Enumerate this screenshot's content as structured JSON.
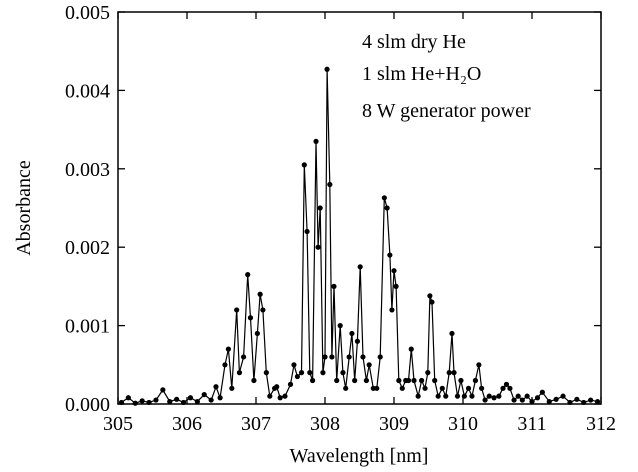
{
  "chart_data": {
    "type": "line",
    "xlabel": "Wavelength [nm]",
    "ylabel": "Absorbance",
    "annotations": [
      "4 slm dry He",
      "1 slm He+H₂O",
      "8 W generator power"
    ],
    "xlim": [
      305,
      312
    ],
    "xticks": [
      305,
      306,
      307,
      308,
      309,
      310,
      311,
      312
    ],
    "ylim": [
      0,
      0.005
    ],
    "yticks": [
      {
        "value": 0,
        "label": "0.000"
      },
      {
        "value": 0.001,
        "label": "0.001"
      },
      {
        "value": 0.002,
        "label": "0.002"
      },
      {
        "value": 0.003,
        "label": "0.003"
      },
      {
        "value": 0.004,
        "label": "0.004"
      },
      {
        "value": 0.005,
        "label": "0.005"
      }
    ],
    "x": [
      305.05,
      305.15,
      305.25,
      305.35,
      305.45,
      305.55,
      305.65,
      305.75,
      305.85,
      305.95,
      306.05,
      306.15,
      306.25,
      306.35,
      306.42,
      306.48,
      306.55,
      306.6,
      306.65,
      306.72,
      306.76,
      306.82,
      306.88,
      306.92,
      306.97,
      307.02,
      307.06,
      307.1,
      307.15,
      307.2,
      307.27,
      307.3,
      307.35,
      307.42,
      307.5,
      307.55,
      307.6,
      307.66,
      307.7,
      307.74,
      307.78,
      307.82,
      307.87,
      307.9,
      307.93,
      307.97,
      308.0,
      308.03,
      308.07,
      308.1,
      308.13,
      308.17,
      308.22,
      308.26,
      308.3,
      308.35,
      308.39,
      308.43,
      308.47,
      308.51,
      308.55,
      308.6,
      308.64,
      308.7,
      308.75,
      308.8,
      308.86,
      308.9,
      308.94,
      308.97,
      309.0,
      309.03,
      309.07,
      309.12,
      309.17,
      309.21,
      309.25,
      309.29,
      309.35,
      309.4,
      309.45,
      309.49,
      309.52,
      309.55,
      309.59,
      309.64,
      309.7,
      309.75,
      309.8,
      309.84,
      309.87,
      309.92,
      309.97,
      310.02,
      310.08,
      310.13,
      310.18,
      310.23,
      310.27,
      310.32,
      310.38,
      310.45,
      310.52,
      310.58,
      310.63,
      310.68,
      310.74,
      310.8,
      310.86,
      310.93,
      311.0,
      311.08,
      311.15,
      311.25,
      311.35,
      311.45,
      311.55,
      311.65,
      311.75,
      311.85,
      311.95
    ],
    "series": [
      {
        "color": "#000000",
        "values": [
          2e-05,
          8e-05,
          1e-05,
          4e-05,
          2e-05,
          5e-05,
          0.00018,
          3e-05,
          6e-05,
          2e-05,
          8e-05,
          3e-05,
          0.00012,
          5e-05,
          0.00022,
          8e-05,
          0.0005,
          0.0007,
          0.0002,
          0.0012,
          0.0004,
          0.0006,
          0.00165,
          0.0011,
          0.0003,
          0.0009,
          0.0014,
          0.0012,
          0.0004,
          0.0001,
          0.0002,
          0.00022,
          8e-05,
          0.0001,
          0.00025,
          0.0005,
          0.00035,
          0.0004,
          0.00305,
          0.0022,
          0.0004,
          0.0003,
          0.00335,
          0.002,
          0.0025,
          0.0004,
          0.0006,
          0.00427,
          0.0028,
          0.0006,
          0.0015,
          0.0003,
          0.001,
          0.0004,
          0.0002,
          0.0006,
          0.0009,
          0.0003,
          0.0008,
          0.00175,
          0.0006,
          0.0003,
          0.0005,
          0.0002,
          0.0002,
          0.0006,
          0.00263,
          0.0025,
          0.0019,
          0.0012,
          0.0017,
          0.0015,
          0.0003,
          0.0002,
          0.0003,
          0.0003,
          0.0007,
          0.0003,
          0.0001,
          0.0003,
          0.0002,
          0.0004,
          0.00138,
          0.0013,
          0.0003,
          0.0001,
          0.0002,
          0.0001,
          0.0004,
          0.0009,
          0.0004,
          0.0001,
          0.0003,
          0.0001,
          0.0002,
          0.0001,
          0.0003,
          0.0005,
          0.0002,
          5e-05,
          0.0001,
          8e-05,
          0.0001,
          0.0002,
          0.00025,
          0.0002,
          5e-05,
          0.0001,
          5e-05,
          0.0001,
          3e-05,
          8e-05,
          0.00015,
          3e-05,
          6e-05,
          0.0001,
          2e-05,
          6e-05,
          2e-05,
          5e-05,
          3e-05
        ]
      }
    ]
  }
}
